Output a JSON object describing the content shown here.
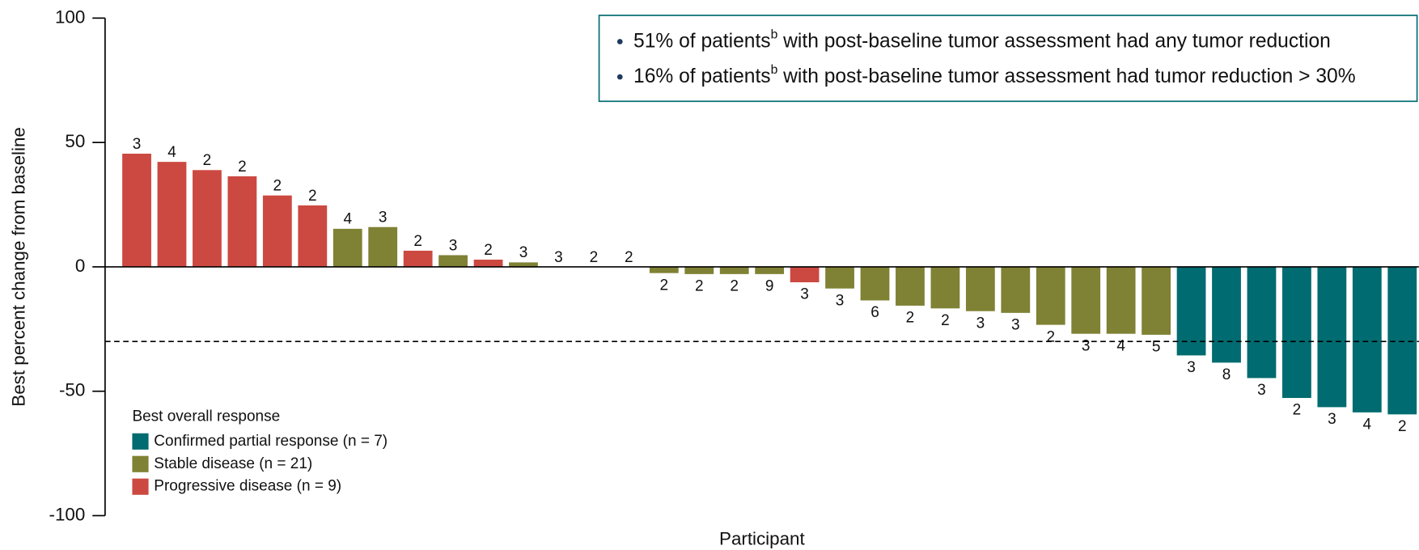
{
  "chart_data": {
    "type": "waterfall",
    "y_label": "Best percent change from baseline",
    "x_label": "Participant",
    "ylim": [
      -100,
      100
    ],
    "yticks": [
      -100,
      -50,
      0,
      50,
      100
    ],
    "reference_line": -30,
    "categories": [
      null,
      null,
      null,
      null,
      null,
      null,
      null,
      null,
      null,
      null,
      null,
      null,
      null,
      null,
      null,
      null,
      null,
      null,
      null,
      null,
      null,
      null,
      null,
      null,
      null,
      null,
      null,
      null,
      null,
      null,
      null,
      null,
      null,
      null,
      null,
      null,
      null
    ],
    "legend_title": "Best overall response",
    "series": [
      {
        "name": "Confirmed partial response (n = 7)",
        "color": "#006b70",
        "values": [
          null,
          null,
          null,
          null,
          null,
          null,
          null,
          null,
          null,
          null,
          null,
          null,
          null,
          null,
          null,
          null,
          null,
          null,
          null,
          null,
          null,
          null,
          null,
          null,
          null,
          null,
          null,
          null,
          null,
          null,
          -35.6,
          -38.5,
          -44.7,
          -52.7,
          -56.4,
          -58.5,
          -59.3
        ]
      },
      {
        "name": "Stable disease (n = 21)",
        "color": "#7f8134",
        "values": [
          null,
          null,
          null,
          null,
          null,
          null,
          15.3,
          16.0,
          null,
          4.7,
          null,
          1.8,
          0,
          0,
          0,
          -2.5,
          -2.9,
          -2.9,
          -2.9,
          null,
          -8.7,
          -13.5,
          -15.6,
          -16.7,
          -17.8,
          -18.5,
          -23.3,
          -26.9,
          -26.9,
          -27.3,
          null,
          null,
          null,
          null,
          null,
          null,
          null
        ]
      },
      {
        "name": "Progressive disease (n = 9)",
        "color": "#cc4941",
        "values": [
          45.5,
          42.2,
          38.9,
          36.4,
          28.7,
          24.7,
          null,
          null,
          6.5,
          null,
          2.9,
          null,
          null,
          null,
          null,
          null,
          null,
          null,
          null,
          -6.2,
          null,
          null,
          null,
          null,
          null,
          null,
          null,
          null,
          null,
          null,
          null,
          null,
          null,
          null,
          null,
          null,
          null
        ]
      }
    ],
    "bar_labels": [
      3,
      4,
      2,
      2,
      2,
      2,
      4,
      3,
      2,
      3,
      2,
      3,
      3,
      2,
      2,
      2,
      2,
      2,
      9,
      3,
      3,
      6,
      2,
      2,
      3,
      3,
      2,
      3,
      4,
      5,
      3,
      8,
      3,
      2,
      3,
      4,
      2
    ],
    "notes": [
      {
        "text": "51% of patients",
        "sup": "b",
        "rest": " with post-baseline tumor assessment had any tumor reduction"
      },
      {
        "text": "16% of patients",
        "sup": "b",
        "rest": " with post-baseline tumor assessment had tumor reduction > 30%"
      }
    ]
  }
}
